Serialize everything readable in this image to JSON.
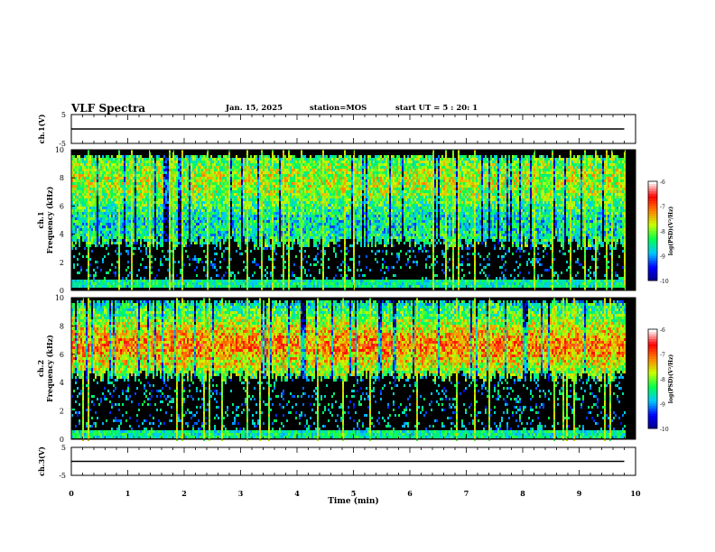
{
  "header": {
    "title": "VLF Spectra",
    "date": "Jan. 15, 2025",
    "station": "station=MOS",
    "start_ut": "start UT =  5 : 20: 1"
  },
  "chart_data": [
    {
      "type": "line",
      "panel": "ch1_waveform",
      "ylabel": "ch.1(V)",
      "ylim": [
        -5,
        5
      ],
      "yticks": [
        "5",
        "-5"
      ],
      "series": [
        {
          "x": [
            0,
            9.8
          ],
          "values": [
            0,
            0
          ]
        }
      ]
    },
    {
      "type": "heatmap",
      "panel": "ch1_spectrogram",
      "ylabel_lines": [
        "ch.1",
        "Frequency (kHz)"
      ],
      "ylim": [
        0,
        10
      ],
      "yticks": [
        0,
        2,
        4,
        6,
        8,
        10
      ],
      "xlim": [
        0,
        9.8
      ],
      "colorbar": {
        "label": "log(PSD)(V²/Hz)",
        "min": -10,
        "max": -6,
        "ticks": [
          -6,
          -7,
          -8,
          -9,
          -10
        ]
      },
      "band_profile_khz": [
        0.5,
        3.5,
        9.8
      ],
      "peak_log_psd": -7
    },
    {
      "type": "heatmap",
      "panel": "ch2_spectrogram",
      "ylabel_lines": [
        "ch.2",
        "Frequency (kHz)"
      ],
      "ylim": [
        0,
        10
      ],
      "yticks": [
        0,
        2,
        4,
        6,
        8,
        10
      ],
      "xlim": [
        0,
        9.8
      ],
      "colorbar": {
        "label": "log(PSD)(V²/Hz)",
        "min": -10,
        "max": -6,
        "ticks": [
          -6,
          -7,
          -8,
          -9,
          -10
        ]
      },
      "band_profile_khz": [
        0.5,
        4.5,
        10
      ],
      "band_center_khz": 6.7,
      "peak_log_psd": -6.5
    },
    {
      "type": "line",
      "panel": "ch3_waveform",
      "ylabel": "ch.3(V)",
      "ylim": [
        -5,
        5
      ],
      "yticks": [
        "5",
        "-5"
      ],
      "series": [
        {
          "x": [
            0,
            9.8
          ],
          "values": [
            0,
            0
          ]
        }
      ]
    }
  ],
  "x_axis": {
    "label": "Time (min)",
    "ticks": [
      "0",
      "1",
      "2",
      "3",
      "4",
      "5",
      "6",
      "7",
      "8",
      "9",
      "10"
    ],
    "range": [
      0,
      10
    ]
  },
  "colors": {
    "colormap": [
      "#000080",
      "#0000ff",
      "#00c8ff",
      "#00ff50",
      "#c8ff00",
      "#ff8000",
      "#ff0000",
      "#ffffff"
    ],
    "background_spectrum": "#000000"
  }
}
